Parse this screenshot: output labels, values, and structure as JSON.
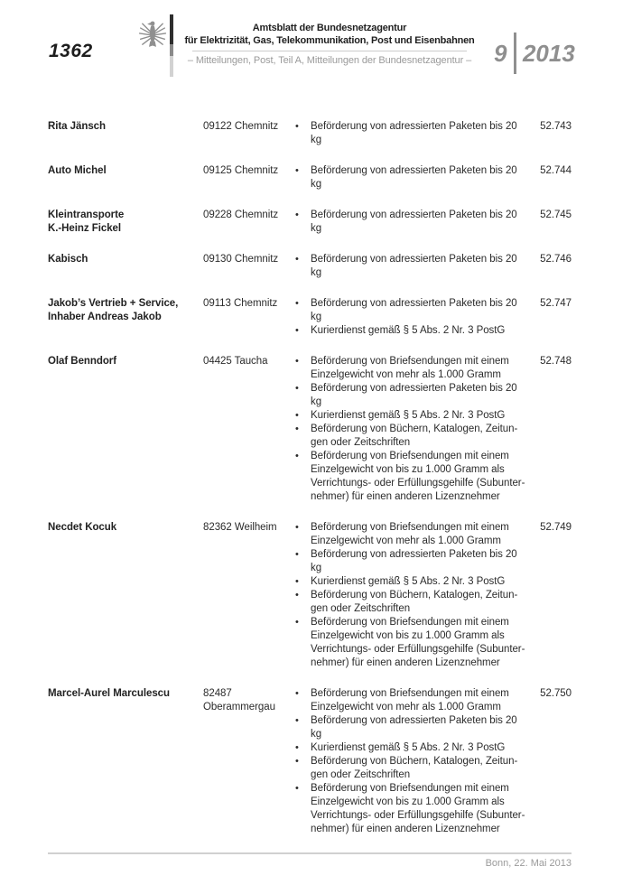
{
  "header": {
    "page_number": "1362",
    "title_line1": "Amtsblatt der Bundesnetzagentur",
    "title_line2": "für Elektrizität, Gas, Telekommunikation, Post und Eisenbahnen",
    "subtitle": "– Mitteilungen, Post, Teil A, Mitteilungen der Bundesnetzagentur –",
    "issue_number": "9",
    "issue_year": "2013",
    "logo_icon": "federal-eagle"
  },
  "colors": {
    "text": "#2b2b2b",
    "muted_gray": "#9a9a9a",
    "logo_gray": "#8f8f8f",
    "rule_gray": "#cccccc"
  },
  "table": {
    "bullet_char": "•"
  },
  "entries": [
    {
      "name": "Rita Jänsch",
      "address": "09122 Chemnitz",
      "services": [
        "Beförderung von adressierten Paketen bis 20 kg"
      ],
      "license_number": "52.743"
    },
    {
      "name": "Auto Michel",
      "address": "09125 Chemnitz",
      "services": [
        "Beförderung von adressierten Paketen bis 20 kg"
      ],
      "license_number": "52.744"
    },
    {
      "name": "Kleintransporte\nK.-Heinz Fickel",
      "address": "09228 Chemnitz",
      "services": [
        "Beförderung von adressierten Paketen bis 20 kg"
      ],
      "license_number": "52.745"
    },
    {
      "name": "Kabisch",
      "address": "09130 Chemnitz",
      "services": [
        "Beförderung von adressierten Paketen bis 20 kg"
      ],
      "license_number": "52.746"
    },
    {
      "name": "Jakob’s Vertrieb + Service,\nInhaber Andreas Jakob",
      "address": "09113 Chemnitz",
      "services": [
        "Beförderung von adressierten Paketen bis 20 kg",
        "Kurierdienst gemäß § 5 Abs. 2 Nr. 3 PostG"
      ],
      "license_number": "52.747"
    },
    {
      "name": "Olaf Benndorf",
      "address": "04425 Taucha",
      "services": [
        "Beförderung von Briefsendungen mit einem Einzelgewicht von mehr als 1.000 Gramm",
        "Beförderung von adressierten Paketen bis 20 kg",
        "Kurierdienst gemäß § 5 Abs. 2 Nr. 3 PostG",
        "Beförderung von Büchern, Katalogen, Zeitun­gen oder Zeitschriften",
        "Beförderung von Briefsendungen mit einem Einzelgewicht von bis zu 1.000 Gramm als Verrichtungs- oder Erfüllungsgehilfe (Subunter­nehmer) für einen anderen Lizenznehmer"
      ],
      "license_number": "52.748"
    },
    {
      "name": "Necdet Kocuk",
      "address": "82362 Weilheim",
      "services": [
        "Beförderung von Briefsendungen mit einem Einzelgewicht von mehr als 1.000 Gramm",
        "Beförderung von adressierten Paketen bis 20 kg",
        "Kurierdienst gemäß § 5 Abs. 2 Nr. 3 PostG",
        "Beförderung von Büchern, Katalogen, Zeitun­gen oder Zeitschriften",
        "Beförderung von Briefsendungen mit einem Einzelgewicht von bis zu 1.000 Gramm als Verrichtungs- oder Erfüllungsgehilfe (Subunter­nehmer) für einen anderen Lizenznehmer"
      ],
      "license_number": "52.749"
    },
    {
      "name": "Marcel-Aurel Marculescu",
      "address": "82487\nOberammergau",
      "services": [
        "Beförderung von Briefsendungen mit einem Einzelgewicht von mehr als 1.000 Gramm",
        "Beförderung von adressierten Paketen bis 20 kg",
        "Kurierdienst gemäß § 5 Abs. 2 Nr. 3 PostG",
        "Beförderung von Büchern, Katalogen, Zeitun­gen oder Zeitschriften",
        "Beförderung von Briefsendungen mit einem Einzelgewicht von bis zu 1.000 Gramm als Verrichtungs- oder Erfüllungsgehilfe (Subunter­nehmer) für einen anderen Lizenznehmer"
      ],
      "license_number": "52.750"
    }
  ],
  "footer": {
    "place_date": "Bonn, 22. Mai 2013"
  }
}
